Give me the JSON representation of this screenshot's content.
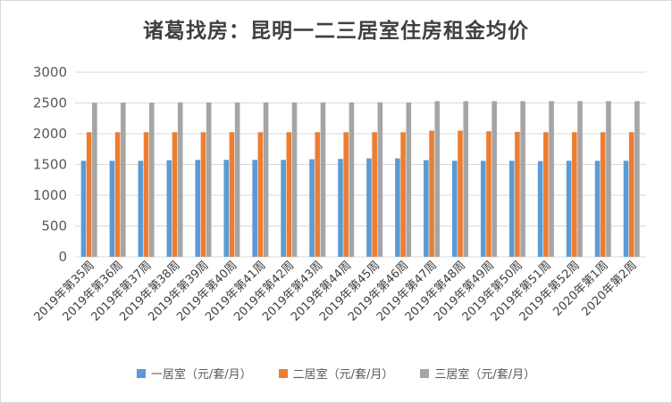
{
  "chart_data": {
    "type": "bar",
    "title": "诸葛找房：昆明一二三居室住房租金均价",
    "categories": [
      "2019年第35周",
      "2019年第36周",
      "2019年第37周",
      "2019年第38周",
      "2019年第39周",
      "2019年第40周",
      "2019年第41周",
      "2019年第42周",
      "2019年第43周",
      "2019年第44周",
      "2019年第45周",
      "2019年第46周",
      "2019年第47周",
      "2019年第48周",
      "2019年第49周",
      "2019年第50周",
      "2019年第51周",
      "2019年第52周",
      "2020年第1周",
      "2020年第2周"
    ],
    "series": [
      {
        "name": "一居室（元/套/月）",
        "color": "#5b9bd5",
        "values": [
          1560,
          1560,
          1560,
          1570,
          1575,
          1575,
          1575,
          1575,
          1585,
          1590,
          1600,
          1600,
          1570,
          1560,
          1560,
          1560,
          1555,
          1560,
          1560,
          1560
        ]
      },
      {
        "name": "二居室（元/套/月）",
        "color": "#ed7d31",
        "values": [
          2025,
          2025,
          2025,
          2025,
          2025,
          2025,
          2025,
          2025,
          2025,
          2025,
          2025,
          2025,
          2050,
          2050,
          2040,
          2030,
          2025,
          2025,
          2025,
          2025
        ]
      },
      {
        "name": "三居室（元/套/月）",
        "color": "#a5a5a5",
        "values": [
          2505,
          2505,
          2505,
          2510,
          2510,
          2510,
          2510,
          2510,
          2510,
          2510,
          2510,
          2510,
          2530,
          2530,
          2530,
          2530,
          2530,
          2530,
          2530,
          2530
        ]
      }
    ],
    "yticks": [
      0,
      500,
      1000,
      1500,
      2000,
      2500,
      3000
    ],
    "ylim": [
      0,
      3000
    ],
    "grid": true,
    "legend_position": "bottom",
    "gridline_color": "#d9d9d9"
  }
}
